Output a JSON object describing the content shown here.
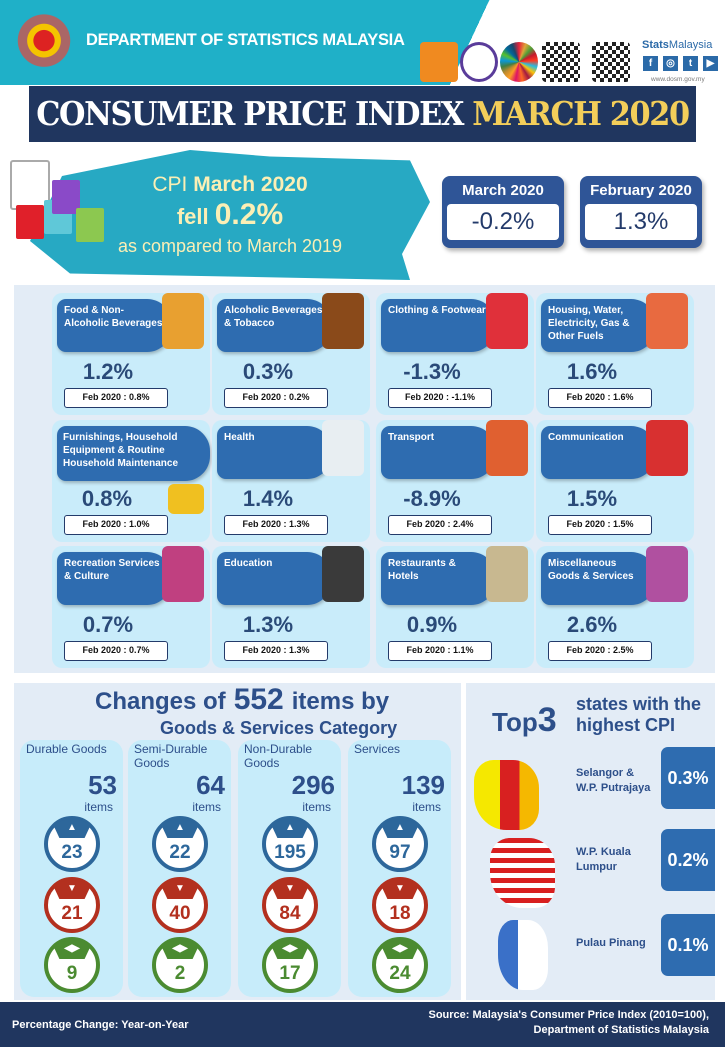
{
  "header": {
    "department": "DEPARTMENT OF STATISTICS MALAYSIA",
    "brand_stats": "Stats",
    "brand_malaysia": "Malaysia",
    "website": "www.dosm.gov.my",
    "social": [
      "f",
      "◎",
      "t",
      "▶"
    ]
  },
  "title": {
    "main": "CONSUMER PRICE INDEX",
    "period": "MARCH 2020"
  },
  "hero": {
    "line1_a": "CPI ",
    "line1_b": "March 2020",
    "line2_a": "fell ",
    "line2_b": "0.2%",
    "line3": "as compared to March 2019"
  },
  "summary": [
    {
      "label": "March 2020",
      "value": "-0.2%"
    },
    {
      "label": "February 2020",
      "value": "1.3%"
    }
  ],
  "categories": [
    {
      "name": "Food & Non-Alcoholic Beverages",
      "value": "1.2%",
      "feb": "Feb 2020 : 0.8%",
      "icon": "burger-icon",
      "color": "#e8a030"
    },
    {
      "name": "Alcoholic Beverages & Tobacco",
      "value": "0.3%",
      "feb": "Feb 2020 : 0.2%",
      "icon": "bottle-icon",
      "color": "#8a4a1a"
    },
    {
      "name": "Clothing & Footwear",
      "value": "-1.3%",
      "feb": "Feb 2020 : -1.1%",
      "icon": "dress-icon",
      "color": "#e0303a"
    },
    {
      "name": "Housing, Water, Electricity, Gas & Other Fuels",
      "value": "1.6%",
      "feb": "Feb 2020 : 1.6%",
      "icon": "house-icon",
      "color": "#e86a40"
    },
    {
      "name": "Furnishings, Household Equipment & Routine Household Maintenance",
      "value": "0.8%",
      "feb": "Feb 2020 : 1.0%",
      "icon": "furniture-icon",
      "color": "#f0c020"
    },
    {
      "name": "Health",
      "value": "1.4%",
      "feb": "Feb 2020 : 1.3%",
      "icon": "hospital-icon",
      "color": "#e8eef2"
    },
    {
      "name": "Transport",
      "value": "-8.9%",
      "feb": "Feb 2020 : 2.4%",
      "icon": "transport-icon",
      "color": "#e06030"
    },
    {
      "name": "Communication",
      "value": "1.5%",
      "feb": "Feb 2020 : 1.5%",
      "icon": "phone-icon",
      "color": "#d83030"
    },
    {
      "name": "Recreation Services & Culture",
      "value": "0.7%",
      "feb": "Feb 2020 : 0.7%",
      "icon": "guitar-icon",
      "color": "#c04080"
    },
    {
      "name": "Education",
      "value": "1.3%",
      "feb": "Feb 2020 : 1.3%",
      "icon": "graduation-cap-icon",
      "color": "#3a3a3a"
    },
    {
      "name": "Restaurants & Hotels",
      "value": "0.9%",
      "feb": "Feb 2020 : 1.1%",
      "icon": "building-icon",
      "color": "#c8b890"
    },
    {
      "name": "Miscellaneous Goods & Services",
      "value": "2.6%",
      "feb": "Feb 2020 : 2.5%",
      "icon": "cosmetics-icon",
      "color": "#b050a0"
    }
  ],
  "items": {
    "title_a": "Changes of",
    "total": "552",
    "title_b": "items by",
    "subtitle": "Goods & Services Category",
    "unit": "items",
    "groups": [
      {
        "name": "Durable Goods",
        "count": "53",
        "up": "23",
        "down": "21",
        "same": "9"
      },
      {
        "name": "Semi-Durable Goods",
        "count": "64",
        "up": "22",
        "down": "40",
        "same": "2"
      },
      {
        "name": "Non-Durable Goods",
        "count": "296",
        "up": "195",
        "down": "84",
        "same": "17"
      },
      {
        "name": "Services",
        "count": "139",
        "up": "97",
        "down": "18",
        "same": "24"
      }
    ]
  },
  "top_states": {
    "title_a": "Top",
    "title_n": "3",
    "title_b": "states with the highest CPI",
    "states": [
      {
        "name": "Selangor & W.P. Putrajaya",
        "value": "0.3%"
      },
      {
        "name": "W.P. Kuala Lumpur",
        "value": "0.2%"
      },
      {
        "name": "Pulau Pinang",
        "value": "0.1%"
      }
    ]
  },
  "footer": {
    "note": "Percentage Change: Year-on-Year",
    "source_1": "Source: Malaysia's Consumer Price Index (2010=100),",
    "source_2": "Department of Statistics Malaysia"
  },
  "colors": {
    "navy": "#20365f",
    "teal": "#1fb0c8",
    "gold": "#f3ce5a",
    "card_blue": "#2e6cb0",
    "up": "#2d679b",
    "down": "#b3301f",
    "unchanged": "#4b8b31"
  }
}
